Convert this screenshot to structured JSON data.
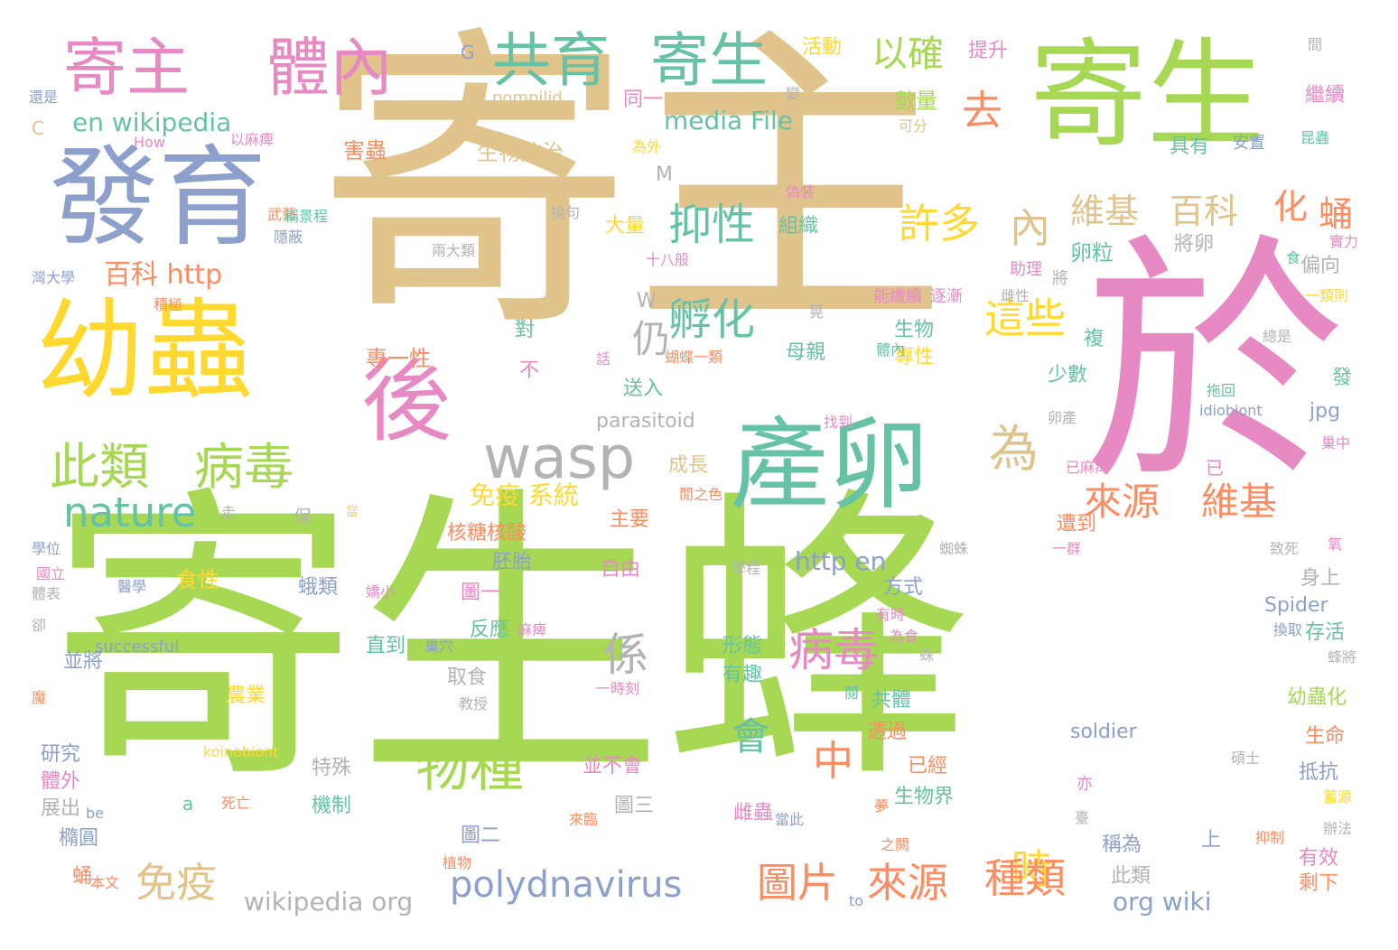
{
  "palette": {
    "tan": "#e0c48c",
    "green": "#a6d854",
    "pink": "#e78ac3",
    "blue": "#8da0cb",
    "yellow": "#ffd92f",
    "teal": "#66c2a5",
    "orange": "#fc8d62",
    "gray": "#b3b3b3"
  },
  "words": [
    {
      "text": "寄主",
      "color": "tan"
    },
    {
      "text": "寄生蜂",
      "color": "green"
    },
    {
      "text": "於",
      "color": "pink"
    },
    {
      "text": "寄生",
      "color": "green"
    },
    {
      "text": "發育",
      "color": "blue"
    },
    {
      "text": "幼蟲",
      "color": "yellow"
    },
    {
      "text": "產卵",
      "color": "teal"
    },
    {
      "text": "後",
      "color": "pink"
    },
    {
      "text": "寄主",
      "color": "pink"
    },
    {
      "text": "體內",
      "color": "pink"
    },
    {
      "text": "共育",
      "color": "teal"
    },
    {
      "text": "寄生",
      "color": "teal"
    },
    {
      "text": "wasp",
      "color": "gray"
    },
    {
      "text": "為",
      "color": "tan"
    },
    {
      "text": "此類",
      "color": "green"
    },
    {
      "text": "病毒",
      "color": "green"
    },
    {
      "text": "物種",
      "color": "green"
    },
    {
      "text": "nature",
      "color": "teal"
    },
    {
      "text": "polydnavirus",
      "color": "blue"
    },
    {
      "text": "抑性",
      "color": "teal"
    },
    {
      "text": "孵化",
      "color": "teal"
    },
    {
      "text": "許多",
      "color": "yellow"
    },
    {
      "text": "內",
      "color": "tan"
    },
    {
      "text": "以確",
      "color": "green"
    },
    {
      "text": "去",
      "color": "orange"
    },
    {
      "text": "en wikipedia",
      "color": "teal"
    },
    {
      "text": "media File",
      "color": "teal"
    },
    {
      "text": "這些",
      "color": "yellow"
    },
    {
      "text": "中",
      "color": "orange"
    },
    {
      "text": "病毒",
      "color": "pink"
    },
    {
      "text": "係",
      "color": "gray"
    },
    {
      "text": "仍",
      "color": "gray"
    },
    {
      "text": "會",
      "color": "teal"
    },
    {
      "text": "時",
      "color": "yellow"
    },
    {
      "text": "免疫",
      "color": "tan"
    },
    {
      "text": "圖片",
      "color": "orange"
    },
    {
      "text": "來源",
      "color": "orange"
    },
    {
      "text": "種類",
      "color": "orange"
    },
    {
      "text": "來源",
      "color": "orange"
    },
    {
      "text": "維基",
      "color": "orange"
    },
    {
      "text": "百科",
      "color": "tan"
    },
    {
      "text": "維基",
      "color": "tan"
    },
    {
      "text": "化",
      "color": "orange"
    },
    {
      "text": "蛹",
      "color": "orange"
    },
    {
      "text": "百科 http",
      "color": "orange"
    },
    {
      "text": "http en",
      "color": "blue"
    },
    {
      "text": "wikipedia org",
      "color": "gray"
    },
    {
      "text": "parasitoid",
      "color": "gray"
    },
    {
      "text": "免疫 系統",
      "color": "yellow"
    },
    {
      "text": "org wiki",
      "color": "blue"
    },
    {
      "text": "Spider",
      "color": "blue"
    },
    {
      "text": "soldier",
      "color": "blue"
    },
    {
      "text": "successful",
      "color": "blue"
    },
    {
      "text": "koinobiont",
      "color": "yellow"
    },
    {
      "text": "idiobiont",
      "color": "blue"
    },
    {
      "text": "pompilid",
      "color": "tan"
    },
    {
      "text": "jpg",
      "color": "blue"
    },
    {
      "text": "G",
      "color": "blue"
    },
    {
      "text": "C",
      "color": "tan"
    },
    {
      "text": "M",
      "color": "gray"
    },
    {
      "text": "W",
      "color": "gray"
    },
    {
      "text": "How",
      "color": "pink"
    },
    {
      "text": "a",
      "color": "teal"
    },
    {
      "text": "be",
      "color": "blue"
    },
    {
      "text": "to",
      "color": "blue"
    },
    {
      "text": "活動",
      "color": "yellow"
    },
    {
      "text": "提升",
      "color": "pink"
    },
    {
      "text": "同一",
      "color": "pink"
    },
    {
      "text": "數量",
      "color": "green"
    },
    {
      "text": "可分",
      "color": "tan"
    },
    {
      "text": "具有",
      "color": "teal"
    },
    {
      "text": "安置",
      "color": "blue"
    },
    {
      "text": "繼續",
      "color": "pink"
    },
    {
      "text": "昆蟲",
      "color": "teal"
    },
    {
      "text": "害蟲",
      "color": "orange"
    },
    {
      "text": "生物防治",
      "color": "tan"
    },
    {
      "text": "為外",
      "color": "yellow"
    },
    {
      "text": "偽裝",
      "color": "pink"
    },
    {
      "text": "換句",
      "color": "gray"
    },
    {
      "text": "大量",
      "color": "yellow"
    },
    {
      "text": "組織",
      "color": "teal"
    },
    {
      "text": "十八般",
      "color": "pink"
    },
    {
      "text": "卵粒",
      "color": "teal"
    },
    {
      "text": "將卵",
      "color": "gray"
    },
    {
      "text": "偏向",
      "color": "gray"
    },
    {
      "text": "一類則",
      "color": "yellow"
    },
    {
      "text": "生物",
      "color": "teal"
    },
    {
      "text": "專性",
      "color": "yellow"
    },
    {
      "text": "專一性",
      "color": "orange"
    },
    {
      "text": "母親",
      "color": "teal"
    },
    {
      "text": "送入",
      "color": "teal"
    },
    {
      "text": "少數",
      "color": "teal"
    },
    {
      "text": "對",
      "color": "teal"
    },
    {
      "text": "不",
      "color": "pink"
    },
    {
      "text": "複",
      "color": "teal"
    },
    {
      "text": "發",
      "color": "teal"
    },
    {
      "text": "成長",
      "color": "tan"
    },
    {
      "text": "主要",
      "color": "orange"
    },
    {
      "text": "核糖核酸",
      "color": "orange"
    },
    {
      "text": "胚胎",
      "color": "blue"
    },
    {
      "text": "自由",
      "color": "pink"
    },
    {
      "text": "圖一",
      "color": "pink"
    },
    {
      "text": "蛾類",
      "color": "blue"
    },
    {
      "text": "方式",
      "color": "blue"
    },
    {
      "text": "形態",
      "color": "teal"
    },
    {
      "text": "有趣",
      "color": "teal"
    },
    {
      "text": "反應",
      "color": "teal"
    },
    {
      "text": "存活",
      "color": "teal"
    },
    {
      "text": "並將",
      "color": "blue"
    },
    {
      "text": "直到",
      "color": "teal"
    },
    {
      "text": "取食",
      "color": "gray"
    },
    {
      "text": "農業",
      "color": "yellow"
    },
    {
      "text": "共體",
      "color": "teal"
    },
    {
      "text": "透過",
      "color": "orange"
    },
    {
      "text": "幼蟲化",
      "color": "green"
    },
    {
      "text": "研究",
      "color": "blue"
    },
    {
      "text": "體外",
      "color": "pink"
    },
    {
      "text": "展出",
      "color": "gray"
    },
    {
      "text": "橢圓",
      "color": "blue"
    },
    {
      "text": "特殊",
      "color": "gray"
    },
    {
      "text": "機制",
      "color": "teal"
    },
    {
      "text": "生物界",
      "color": "teal"
    },
    {
      "text": "已經",
      "color": "orange"
    },
    {
      "text": "雌蟲",
      "color": "pink"
    },
    {
      "text": "生命",
      "color": "orange"
    },
    {
      "text": "抵抗",
      "color": "blue"
    },
    {
      "text": "有效",
      "color": "pink"
    },
    {
      "text": "剩下",
      "color": "orange"
    },
    {
      "text": "稱為",
      "color": "blue"
    },
    {
      "text": "此類",
      "color": "gray"
    },
    {
      "text": "圖二",
      "color": "blue"
    },
    {
      "text": "圖三",
      "color": "gray"
    },
    {
      "text": "並不會",
      "color": "pink"
    },
    {
      "text": "食性",
      "color": "yellow"
    },
    {
      "text": "身上",
      "color": "gray"
    },
    {
      "text": "遭到",
      "color": "orange"
    },
    {
      "text": "一群",
      "color": "pink"
    },
    {
      "text": "已",
      "color": "pink"
    },
    {
      "text": "上",
      "color": "blue"
    },
    {
      "text": "亦",
      "color": "pink"
    },
    {
      "text": "碩士",
      "color": "gray"
    },
    {
      "text": "還是",
      "color": "blue"
    },
    {
      "text": "以麻痺",
      "color": "pink"
    },
    {
      "text": "武藝",
      "color": "orange"
    },
    {
      "text": "稱景程",
      "color": "teal"
    },
    {
      "text": "隱蔽",
      "color": "blue"
    },
    {
      "text": "兩大類",
      "color": "gray"
    },
    {
      "text": "灣大學",
      "color": "blue"
    },
    {
      "text": "積極",
      "color": "orange"
    },
    {
      "text": "助理",
      "color": "pink"
    },
    {
      "text": "能纖續",
      "color": "pink"
    },
    {
      "text": "逐漸",
      "color": "pink"
    },
    {
      "text": "雌性",
      "color": "gray"
    },
    {
      "text": "將",
      "color": "gray"
    },
    {
      "text": "體內",
      "color": "teal"
    },
    {
      "text": "蝴蝶一類",
      "color": "orange"
    },
    {
      "text": "話",
      "color": "pink"
    },
    {
      "text": "晃",
      "color": "gray"
    },
    {
      "text": "總是",
      "color": "gray"
    },
    {
      "text": "拖回",
      "color": "teal"
    },
    {
      "text": "卵產",
      "color": "gray"
    },
    {
      "text": "找到",
      "color": "pink"
    },
    {
      "text": "巢中",
      "color": "pink"
    },
    {
      "text": "閒之色",
      "color": "orange"
    },
    {
      "text": "已麻痺",
      "color": "pink"
    },
    {
      "text": "學位",
      "color": "blue"
    },
    {
      "text": "國立",
      "color": "pink"
    },
    {
      "text": "醫學",
      "color": "blue"
    },
    {
      "text": "嬌小",
      "color": "pink"
    },
    {
      "text": "體表",
      "color": "gray"
    },
    {
      "text": "卻",
      "color": "gray"
    },
    {
      "text": "學程",
      "color": "gray"
    },
    {
      "text": "蜘蛛",
      "color": "gray"
    },
    {
      "text": "走",
      "color": "gray"
    },
    {
      "text": "保",
      "color": "gray"
    },
    {
      "text": "當",
      "color": "yellow"
    },
    {
      "text": "有時",
      "color": "pink"
    },
    {
      "text": "為食",
      "color": "pink"
    },
    {
      "text": "巢穴",
      "color": "blue"
    },
    {
      "text": "麻痺",
      "color": "pink"
    },
    {
      "text": "換取",
      "color": "blue"
    },
    {
      "text": "蜂將",
      "color": "gray"
    },
    {
      "text": "致死",
      "color": "gray"
    },
    {
      "text": "氧",
      "color": "pink"
    },
    {
      "text": "魔",
      "color": "orange"
    },
    {
      "text": "一時刻",
      "color": "pink"
    },
    {
      "text": "教授",
      "color": "gray"
    },
    {
      "text": "閱",
      "color": "teal"
    },
    {
      "text": "蛛",
      "color": "gray"
    },
    {
      "text": "死亡",
      "color": "orange"
    },
    {
      "text": "來臨",
      "color": "orange"
    },
    {
      "text": "當此",
      "color": "blue"
    },
    {
      "text": "夢",
      "color": "orange"
    },
    {
      "text": "之闕",
      "color": "orange"
    },
    {
      "text": "植物",
      "color": "orange"
    },
    {
      "text": "蛹",
      "color": "orange"
    },
    {
      "text": "本文",
      "color": "orange"
    },
    {
      "text": "臺",
      "color": "gray"
    },
    {
      "text": "抑制",
      "color": "orange"
    },
    {
      "text": "辦法",
      "color": "gray"
    },
    {
      "text": "蓄源",
      "color": "yellow"
    },
    {
      "text": "變",
      "color": "gray"
    },
    {
      "text": "實力",
      "color": "pink"
    },
    {
      "text": "食",
      "color": "teal"
    },
    {
      "text": "間",
      "color": "gray"
    }
  ]
}
